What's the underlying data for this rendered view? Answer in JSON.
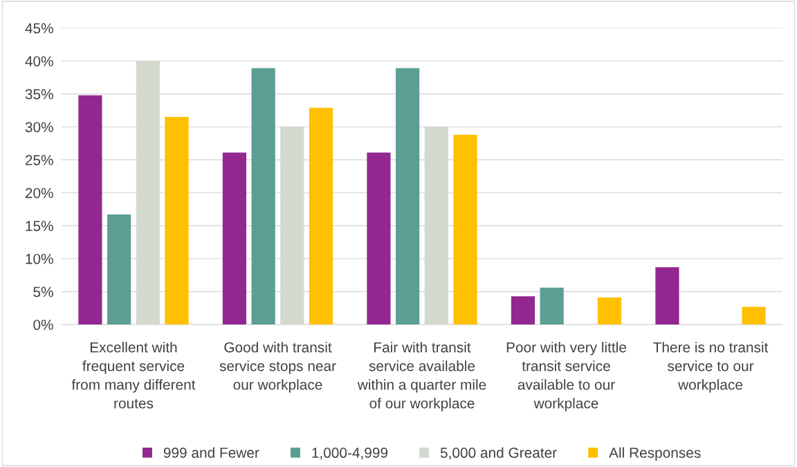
{
  "chart_data": {
    "type": "bar",
    "categories": [
      "Excellent with frequent service from many different routes",
      "Good with transit service stops near our workplace",
      "Fair with transit service available within a quarter mile of our workplace",
      "Poor with very little transit service available to our workplace",
      "There is no transit service to our workplace"
    ],
    "series": [
      {
        "name": "999 and Fewer",
        "color": "#92278f",
        "values": [
          34.8,
          26.1,
          26.1,
          4.3,
          8.7
        ]
      },
      {
        "name": "1,000-4,999",
        "color": "#5b9e94",
        "values": [
          16.7,
          38.9,
          38.9,
          5.6,
          0
        ]
      },
      {
        "name": "5,000 and Greater",
        "color": "#d4d9cf",
        "values": [
          40,
          30,
          30,
          0,
          0
        ]
      },
      {
        "name": "All Responses",
        "color": "#ffc000",
        "values": [
          31.5,
          32.9,
          28.8,
          4.1,
          2.7
        ]
      }
    ],
    "ylim": [
      0,
      45
    ],
    "yticks": [
      {
        "value": 0,
        "label": "0%"
      },
      {
        "value": 5,
        "label": "5%"
      },
      {
        "value": 10,
        "label": "10%"
      },
      {
        "value": 15,
        "label": "15%"
      },
      {
        "value": 20,
        "label": "20%"
      },
      {
        "value": 25,
        "label": "25%"
      },
      {
        "value": 30,
        "label": "30%"
      },
      {
        "value": 35,
        "label": "35%"
      },
      {
        "value": 40,
        "label": "40%"
      },
      {
        "value": 45,
        "label": "45%"
      }
    ],
    "grid": "y",
    "legend": "bottom"
  }
}
